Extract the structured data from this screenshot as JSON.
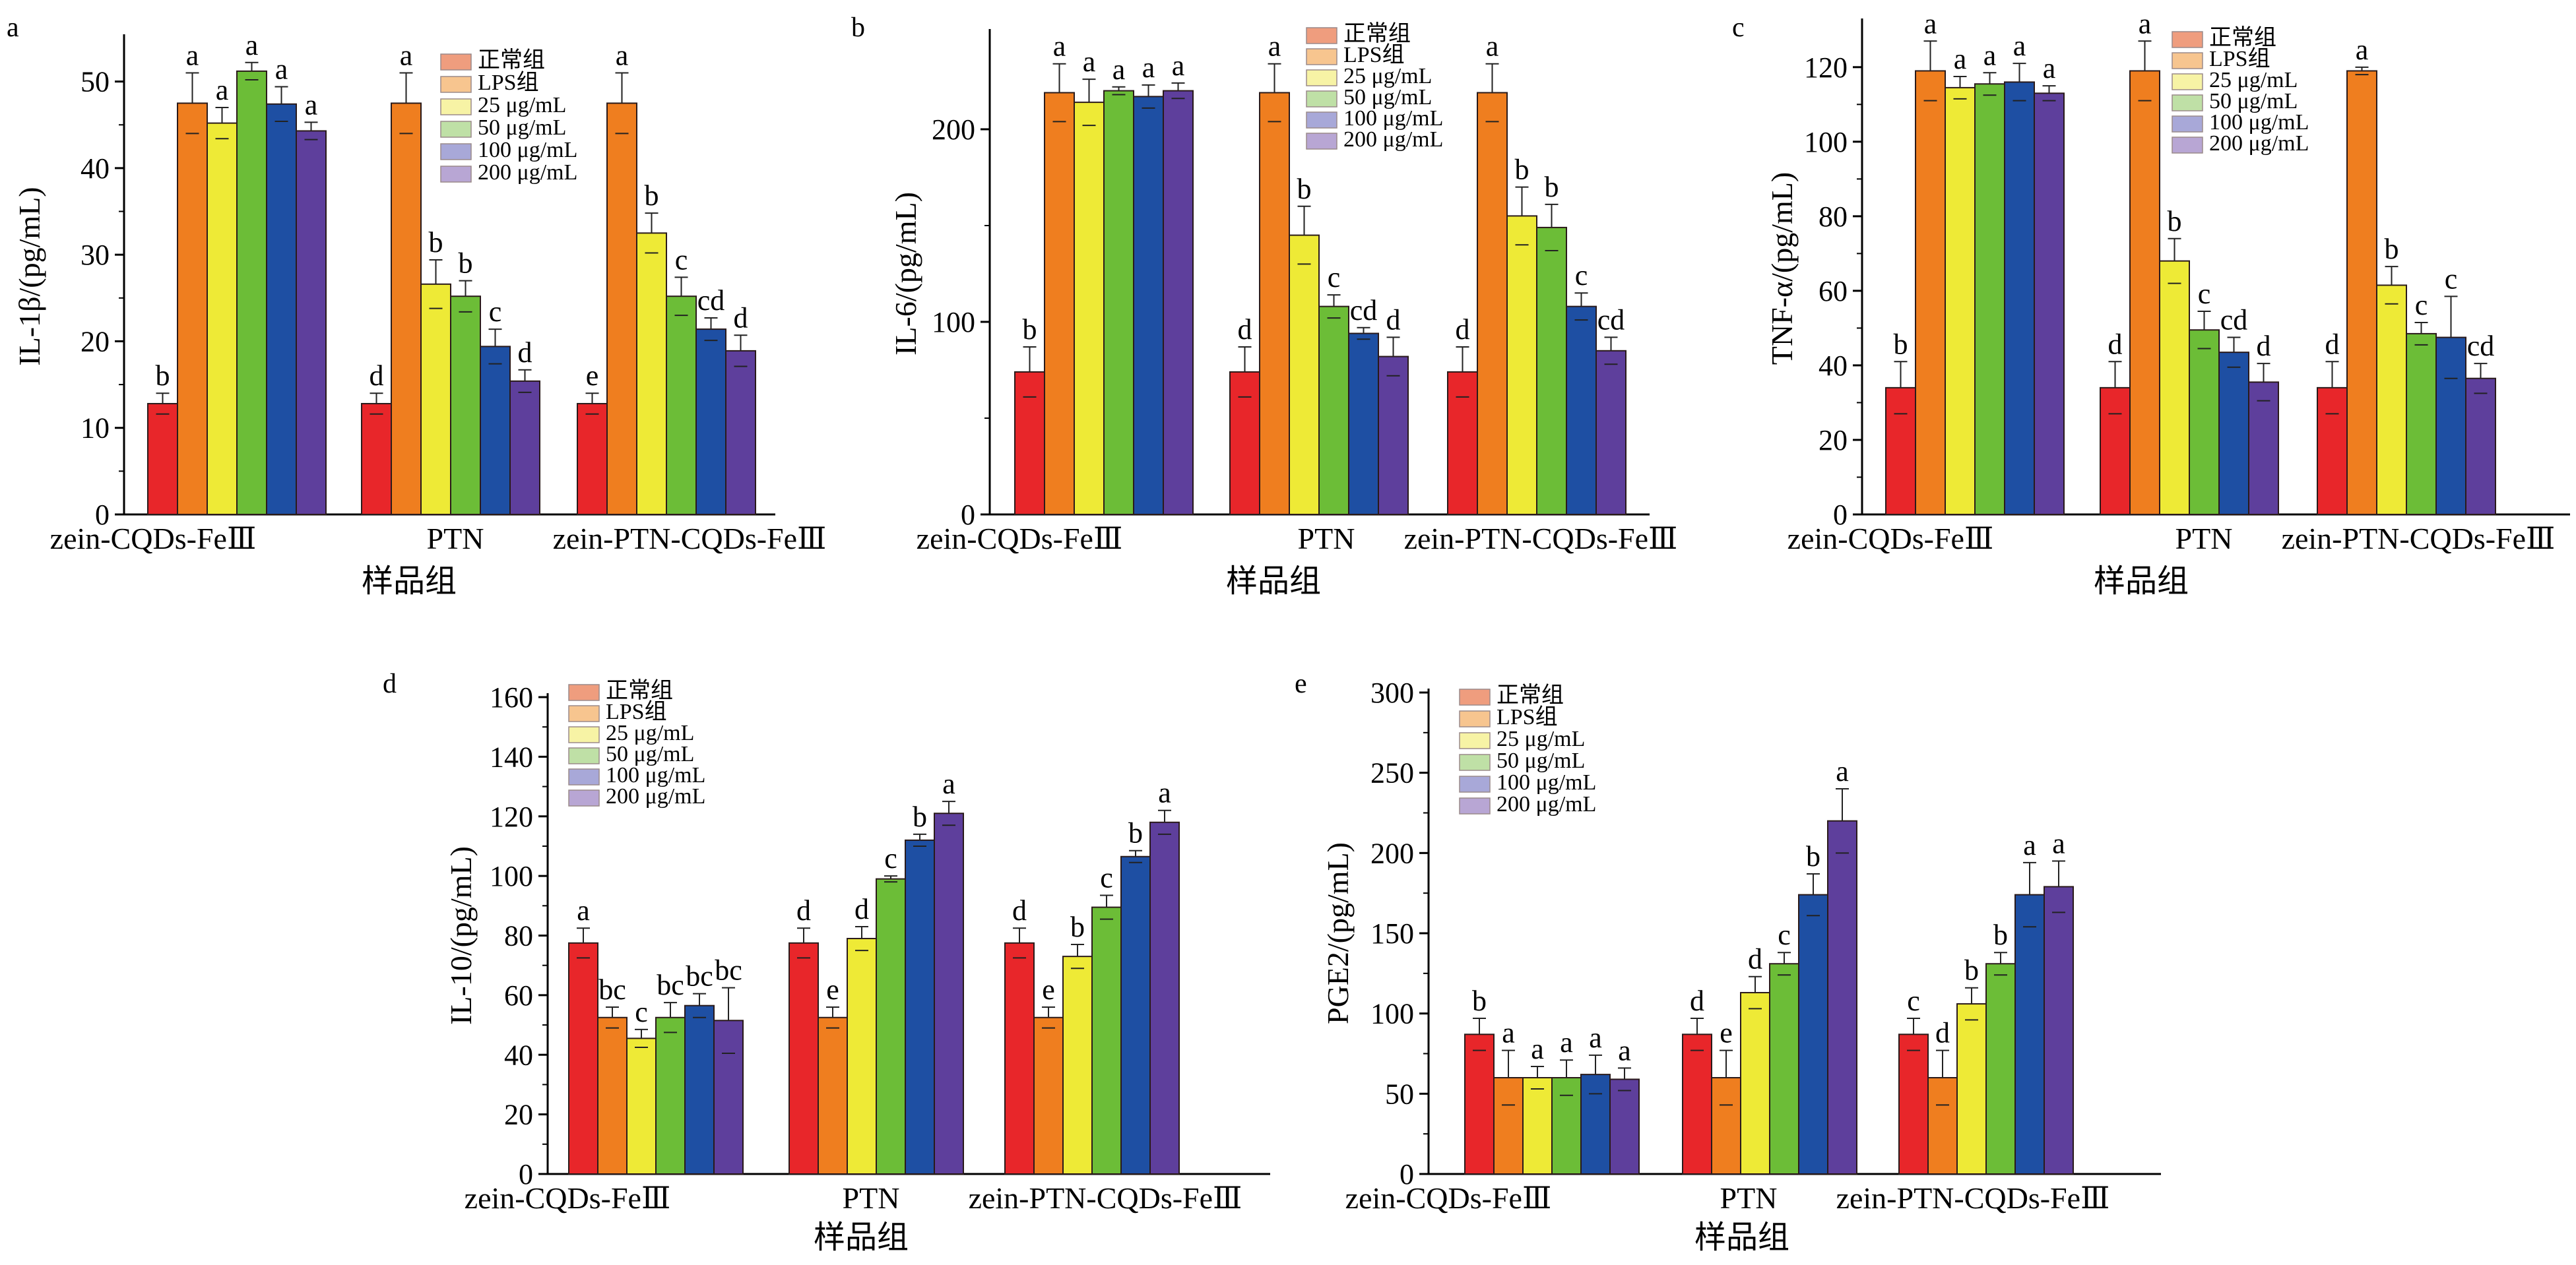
{
  "colors": [
    "#e8262a",
    "#ef7e1f",
    "#eeea36",
    "#6cbd37",
    "#1e4fa3",
    "#5e3f9c"
  ],
  "legend_colors": [
    "#ef9d7e",
    "#f7c58f",
    "#f7f3a5",
    "#bfe0a6",
    "#a8a8d8",
    "#b8a6d4"
  ],
  "chart_data": [
    {
      "type": "bar",
      "panel_label": "a",
      "ylabel": "IL-1β/(pg/mL)",
      "xlabel": "样品组",
      "categories": [
        "zein-CQDs-FeⅢ",
        "PTN",
        "zein-PTN-CQDs-FeⅢ"
      ],
      "ylim": [
        0,
        55
      ],
      "yticks": [
        0,
        10,
        20,
        30,
        40,
        50
      ],
      "series": [
        {
          "name": "正常组",
          "values": [
            12.8,
            12.8,
            12.8
          ],
          "errors": [
            1.2,
            1.2,
            1.2
          ],
          "labels": [
            "b",
            "d",
            "e"
          ]
        },
        {
          "name": "LPS组",
          "values": [
            47.5,
            47.5,
            47.5
          ],
          "errors": [
            3.5,
            3.5,
            3.5
          ],
          "labels": [
            "a",
            "a",
            "a"
          ]
        },
        {
          "name": "25 μg/mL",
          "values": [
            45.2,
            26.6,
            32.5
          ],
          "errors": [
            1.8,
            2.8,
            2.3
          ],
          "labels": [
            "a",
            "b",
            "b"
          ]
        },
        {
          "name": "50 μg/mL",
          "values": [
            51.2,
            25.2,
            25.2
          ],
          "errors": [
            1.0,
            1.8,
            2.2
          ],
          "labels": [
            "a",
            "b",
            "c"
          ]
        },
        {
          "name": "100 μg/mL",
          "values": [
            47.4,
            19.4,
            21.4
          ],
          "errors": [
            2.0,
            2.0,
            1.3
          ],
          "labels": [
            "a",
            "c",
            "cd"
          ]
        },
        {
          "name": "200 μg/mL",
          "values": [
            44.3,
            15.4,
            18.9
          ],
          "errors": [
            1.0,
            1.3,
            1.8
          ],
          "labels": [
            "a",
            "d",
            "d"
          ]
        }
      ]
    },
    {
      "type": "bar",
      "panel_label": "b",
      "ylabel": "IL-6/(pg/mL)",
      "xlabel": "样品组",
      "categories": [
        "zein-CQDs-FeⅢ",
        "PTN",
        "zein-PTN-CQDs-FeⅢ"
      ],
      "ylim": [
        0,
        250
      ],
      "yticks": [
        0,
        100,
        200
      ],
      "series": [
        {
          "name": "正常组",
          "values": [
            74,
            74,
            74
          ],
          "errors": [
            13,
            13,
            13
          ],
          "labels": [
            "b",
            "d",
            "d"
          ]
        },
        {
          "name": "LPS组",
          "values": [
            219,
            219,
            219
          ],
          "errors": [
            15,
            15,
            15
          ],
          "labels": [
            "a",
            "a",
            "a"
          ]
        },
        {
          "name": "25 μg/mL",
          "values": [
            214,
            145,
            155
          ],
          "errors": [
            12,
            15,
            15
          ],
          "labels": [
            "a",
            "b",
            "b"
          ]
        },
        {
          "name": "50 μg/mL",
          "values": [
            220,
            108,
            149
          ],
          "errors": [
            2,
            6,
            12
          ],
          "labels": [
            "a",
            "c",
            "b"
          ]
        },
        {
          "name": "100 μg/mL",
          "values": [
            217,
            94,
            108
          ],
          "errors": [
            6,
            3,
            7
          ],
          "labels": [
            "a",
            "cd",
            "c"
          ]
        },
        {
          "name": "200 μg/mL",
          "values": [
            220,
            82,
            85
          ],
          "errors": [
            4,
            10,
            7
          ],
          "labels": [
            "a",
            "d",
            "cd"
          ]
        }
      ]
    },
    {
      "type": "bar",
      "panel_label": "c",
      "ylabel": "TNF-α/(pg/mL)",
      "xlabel": "样品组",
      "categories": [
        "zein-CQDs-FeⅢ",
        "PTN",
        "zein-PTN-CQDs-FeⅢ"
      ],
      "ylim": [
        0,
        132
      ],
      "yticks": [
        0,
        20,
        40,
        60,
        80,
        100,
        120
      ],
      "series": [
        {
          "name": "正常组",
          "values": [
            34,
            34,
            34
          ],
          "errors": [
            7,
            7,
            7
          ],
          "labels": [
            "b",
            "d",
            "d"
          ]
        },
        {
          "name": "LPS组",
          "values": [
            119,
            119,
            119
          ],
          "errors": [
            8,
            8,
            1
          ],
          "labels": [
            "a",
            "a",
            "a"
          ]
        },
        {
          "name": "25 μg/mL",
          "values": [
            114.5,
            68,
            61.5
          ],
          "errors": [
            3,
            6,
            5
          ],
          "labels": [
            "a",
            "b",
            "b"
          ]
        },
        {
          "name": "50 μg/mL",
          "values": [
            115.5,
            49.5,
            48.5
          ],
          "errors": [
            3,
            5,
            3
          ],
          "labels": [
            "a",
            "c",
            "c"
          ]
        },
        {
          "name": "100 μg/mL",
          "values": [
            116,
            43.5,
            47.5
          ],
          "errors": [
            5,
            4,
            11
          ],
          "labels": [
            "a",
            "cd",
            "c"
          ]
        },
        {
          "name": "200 μg/mL",
          "values": [
            113,
            35.5,
            36.5
          ],
          "errors": [
            2,
            5,
            4
          ],
          "labels": [
            "a",
            "d",
            "cd"
          ]
        }
      ]
    },
    {
      "type": "bar",
      "panel_label": "d",
      "ylabel": "IL-10/(pg/mL)",
      "xlabel": "样品组",
      "categories": [
        "zein-CQDs-FeⅢ",
        "PTN",
        "zein-PTN-CQDs-FeⅢ"
      ],
      "ylim": [
        0,
        160
      ],
      "yticks": [
        0,
        20,
        40,
        60,
        80,
        100,
        120,
        140,
        160
      ],
      "series": [
        {
          "name": "正常组",
          "values": [
            77.5,
            77.5,
            77.5
          ],
          "errors": [
            5,
            5,
            5
          ],
          "labels": [
            "a",
            "d",
            "d"
          ]
        },
        {
          "name": "LPS组",
          "values": [
            52.5,
            52.5,
            52.5
          ],
          "errors": [
            3.5,
            3.5,
            3.5
          ],
          "labels": [
            "bc",
            "e",
            "e"
          ]
        },
        {
          "name": "25 μg/mL",
          "values": [
            45.5,
            79,
            73
          ],
          "errors": [
            3,
            4,
            4
          ],
          "labels": [
            "c",
            "d",
            "b"
          ]
        },
        {
          "name": "50 μg/mL",
          "values": [
            52.5,
            99,
            89.5
          ],
          "errors": [
            5,
            1,
            4
          ],
          "labels": [
            "bc",
            "c",
            "c"
          ]
        },
        {
          "name": "100 μg/mL",
          "values": [
            56.5,
            112,
            106.5
          ],
          "errors": [
            4,
            2,
            2
          ],
          "labels": [
            "bc",
            "b",
            "b"
          ]
        },
        {
          "name": "200 μg/mL",
          "values": [
            51.5,
            121,
            118
          ],
          "errors": [
            11,
            4,
            4
          ],
          "labels": [
            "bc",
            "a",
            "a"
          ]
        }
      ]
    },
    {
      "type": "bar",
      "panel_label": "e",
      "ylabel": "PGE2/(pg/mL)",
      "xlabel": "样品组",
      "categories": [
        "zein-CQDs-FeⅢ",
        "PTN",
        "zein-PTN-CQDs-FeⅢ"
      ],
      "ylim": [
        0,
        300
      ],
      "yticks": [
        0,
        50,
        100,
        150,
        200,
        250,
        300
      ],
      "series": [
        {
          "name": "正常组",
          "values": [
            87,
            87,
            87
          ],
          "errors": [
            10,
            10,
            10
          ],
          "labels": [
            "b",
            "d",
            "c"
          ]
        },
        {
          "name": "LPS组",
          "values": [
            60,
            60,
            60
          ],
          "errors": [
            17,
            17,
            17
          ],
          "labels": [
            "a",
            "e",
            "d"
          ]
        },
        {
          "name": "25 μg/mL",
          "values": [
            60,
            113,
            106
          ],
          "errors": [
            7,
            10,
            10
          ],
          "labels": [
            "a",
            "d",
            "b"
          ]
        },
        {
          "name": "50 μg/mL",
          "values": [
            60,
            131,
            131
          ],
          "errors": [
            11,
            7,
            7
          ],
          "labels": [
            "a",
            "c",
            "b"
          ]
        },
        {
          "name": "100 μg/mL",
          "values": [
            62,
            174,
            174
          ],
          "errors": [
            12,
            13,
            20
          ],
          "labels": [
            "a",
            "b",
            "a"
          ]
        },
        {
          "name": "200 μg/mL",
          "values": [
            59,
            220,
            179
          ],
          "errors": [
            7,
            20,
            16
          ],
          "labels": [
            "a",
            "a",
            "a"
          ]
        }
      ]
    }
  ]
}
